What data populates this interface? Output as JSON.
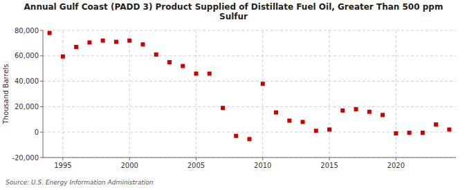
{
  "chart_data": {
    "type": "scatter",
    "title": "Annual Gulf Coast (PADD 3) Product Supplied of Distillate Fuel Oil, Greater Than 500 ppm\nSulfur",
    "y_label": "Thousand Barrels",
    "source": "Source: U.S. Energy Information Administration",
    "x": [
      1994,
      1995,
      1996,
      1997,
      1998,
      1999,
      2000,
      2001,
      2002,
      2003,
      2004,
      2005,
      2006,
      2007,
      2008,
      2009,
      2010,
      2011,
      2012,
      2013,
      2014,
      2015,
      2016,
      2017,
      2018,
      2019,
      2020,
      2021,
      2022,
      2023,
      2024
    ],
    "values": [
      78000,
      59500,
      67000,
      70500,
      72000,
      71000,
      72000,
      69000,
      61000,
      55000,
      52000,
      46000,
      46000,
      19000,
      -3000,
      -5500,
      38000,
      15500,
      9000,
      8000,
      1000,
      2000,
      17000,
      18000,
      16000,
      13500,
      -1000,
      -500,
      -500,
      6000,
      2000
    ],
    "color": "#cc0000",
    "marker": "square",
    "xlim": [
      1993.5,
      2024.5
    ],
    "xticks": [
      1995,
      2000,
      2005,
      2010,
      2015,
      2020
    ],
    "ylim": [
      -20000,
      80000
    ],
    "yticks": [
      {
        "value": -20000,
        "label": "-20,000"
      },
      0,
      {
        "value": 20000,
        "label": "20,000"
      },
      {
        "value": 40000,
        "label": "40,000"
      },
      {
        "value": 60000,
        "label": "60,000"
      },
      {
        "value": 80000,
        "label": "80,000"
      }
    ],
    "grid": true
  }
}
